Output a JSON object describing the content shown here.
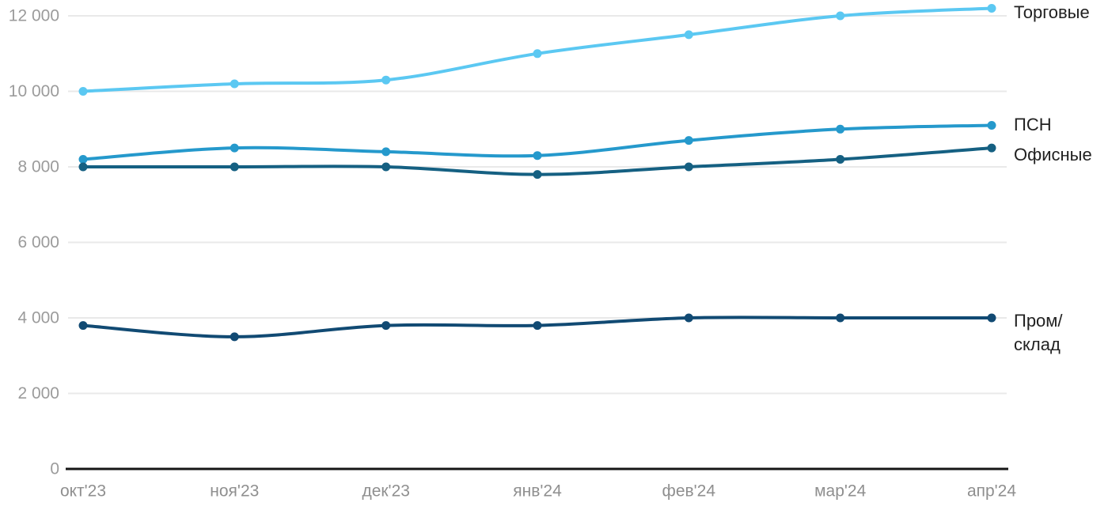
{
  "chart_data": {
    "type": "line",
    "categories": [
      "окт'23",
      "ноя'23",
      "дек'23",
      "янв'24",
      "фев'24",
      "мар'24",
      "апр'24"
    ],
    "y_ticks": [
      {
        "value": 0,
        "label": "0"
      },
      {
        "value": 2000,
        "label": "2 000"
      },
      {
        "value": 4000,
        "label": "4 000"
      },
      {
        "value": 6000,
        "label": "6 000"
      },
      {
        "value": 8000,
        "label": "8 000"
      },
      {
        "value": 10000,
        "label": "10 000"
      },
      {
        "value": 12000,
        "label": "12 000"
      }
    ],
    "ylim": [
      0,
      12000
    ],
    "grid": true,
    "legend_position": "right-end-labels",
    "title": "",
    "xlabel": "",
    "ylabel": "",
    "series": [
      {
        "name": "Торговые",
        "color": "#5bc8f2",
        "values": [
          10000,
          10200,
          10300,
          11000,
          11500,
          12000,
          12200
        ]
      },
      {
        "name": "ПСН",
        "color": "#2599cc",
        "values": [
          8200,
          8500,
          8400,
          8300,
          8700,
          9000,
          9100
        ]
      },
      {
        "name": "Офисные",
        "color": "#156082",
        "values": [
          8000,
          8000,
          8000,
          7800,
          8000,
          8200,
          8500
        ]
      },
      {
        "name": "Пром/склад",
        "color": "#114a73",
        "values": [
          3800,
          3500,
          3800,
          3800,
          4000,
          4000,
          4000
        ]
      }
    ],
    "style": {
      "grid_color": "#e9e9e9",
      "axis_line_color": "#161616",
      "tick_label_color": "#9b9b9b",
      "series_label_color": "#212121",
      "background": "#ffffff"
    }
  }
}
